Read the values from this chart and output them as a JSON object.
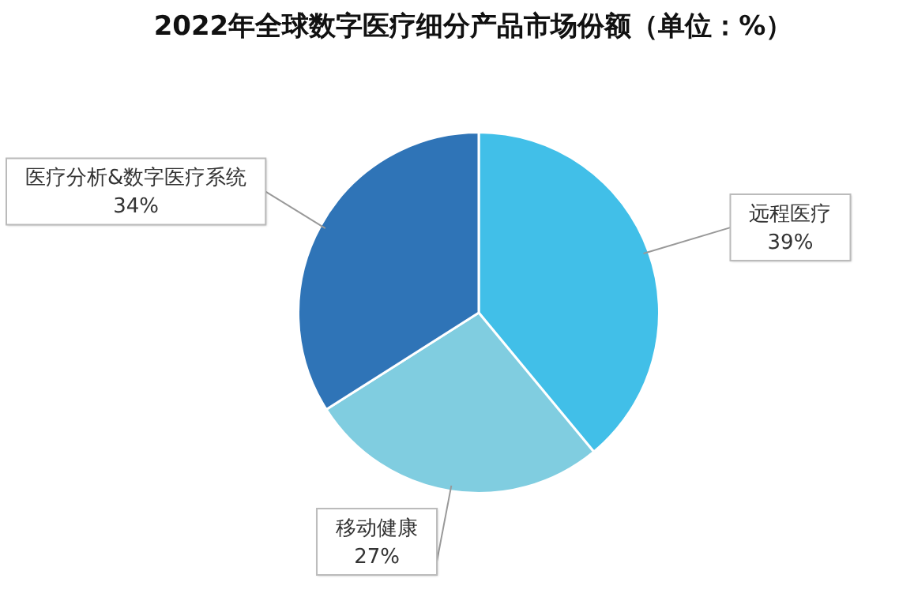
{
  "chart_data": {
    "type": "pie",
    "title": "2022年全球数字医疗细分产品市场份额（单位：%）",
    "categories": [
      "远程医疗",
      "移动健康",
      "医疗分析&数字医疗系统"
    ],
    "values": [
      39,
      27,
      34
    ],
    "colors": [
      "#41bfe8",
      "#80cde0",
      "#2f74b7"
    ],
    "value_labels": [
      "39%",
      "27%",
      "34%"
    ],
    "legend": false
  }
}
